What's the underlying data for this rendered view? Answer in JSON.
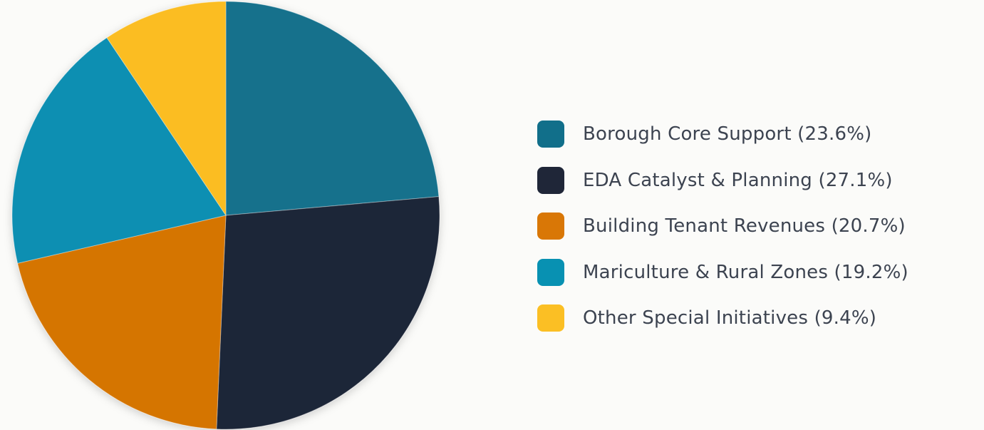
{
  "chart_data": {
    "type": "pie",
    "title": "",
    "legend_position": "right",
    "start": "top",
    "direction": "clockwise",
    "slices": [
      {
        "label": "Borough Core Support (23.6%)",
        "value": 23.6,
        "color": "#13718c",
        "swatch_color": "#116f8a"
      },
      {
        "label": "EDA Catalyst & Planning (27.1%)",
        "value": 27.1,
        "color": "#1f2638",
        "swatch_color": "#1f2638"
      },
      {
        "label": "Building Tenant Revenues (20.7%)",
        "value": 20.7,
        "color": "#d57504",
        "swatch_color": "#d97706"
      },
      {
        "label": "Mariculture & Rural Zones (19.2%)",
        "value": 19.2,
        "color": "#0e8fb2",
        "swatch_color": "#0891b2"
      },
      {
        "label": "Other Special Initiatives (9.4%)",
        "value": 9.4,
        "color": "#fbbd24",
        "swatch_color": "#fbbf24"
      }
    ]
  }
}
